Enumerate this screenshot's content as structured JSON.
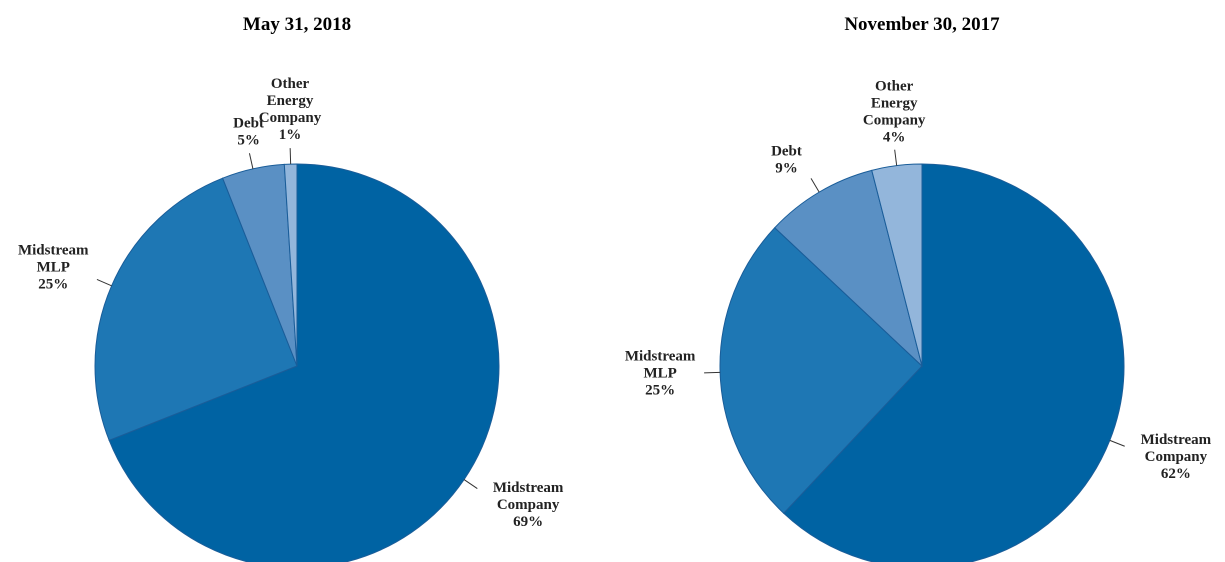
{
  "chart_data": [
    {
      "type": "pie",
      "title": "May 31, 2018",
      "categories": [
        "Midstream Company",
        "Midstream MLP",
        "Debt",
        "Other Energy Company"
      ],
      "values": [
        69,
        25,
        5,
        1
      ],
      "value_labels": [
        "69%",
        "25%",
        "5%",
        "1%"
      ],
      "colors": [
        "#0063a3",
        "#1e77b4",
        "#5a90c4",
        "#93b6db"
      ]
    },
    {
      "type": "pie",
      "title": "November 30, 2017",
      "categories": [
        "Midstream Company",
        "Midstream MLP",
        "Debt",
        "Other Energy Company"
      ],
      "values": [
        62,
        25,
        9,
        4
      ],
      "value_labels": [
        "62%",
        "25%",
        "9%",
        "4%"
      ],
      "colors": [
        "#0063a3",
        "#1e77b4",
        "#5a90c4",
        "#93b6db"
      ]
    }
  ]
}
